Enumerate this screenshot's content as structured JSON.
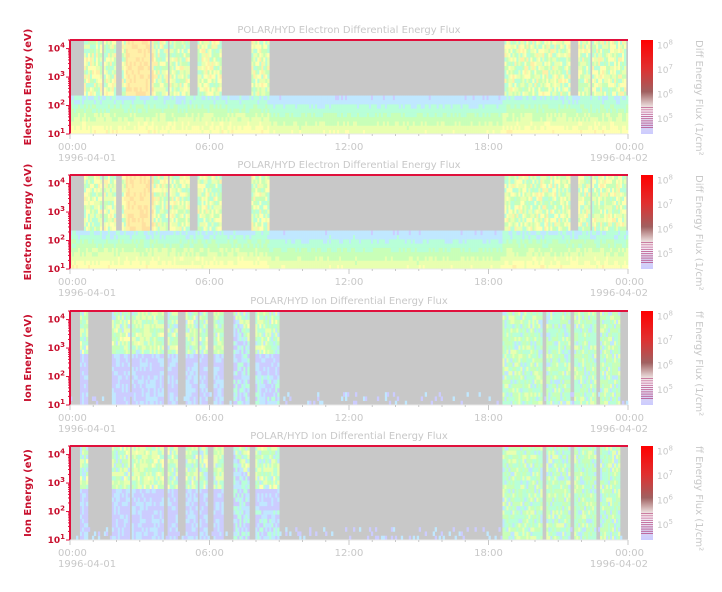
{
  "chart_data": [
    {
      "type": "heatmap",
      "title": "POLAR/HYD  Electron Differential Energy Flux",
      "ylabel": "Electron Energy (eV)",
      "yscale": "log",
      "ylim": [
        10,
        20000
      ],
      "yticks": [
        {
          "base": "10",
          "exp": "1",
          "v": 10
        },
        {
          "base": "10",
          "exp": "2",
          "v": 100
        },
        {
          "base": "10",
          "exp": "3",
          "v": 1000
        },
        {
          "base": "10",
          "exp": "4",
          "v": 10000
        }
      ],
      "xticks": [
        "00:00",
        "06:00",
        "12:00",
        "18:00",
        "00:00"
      ],
      "xlim_hours": [
        0,
        24
      ],
      "start_date": "1996-04-01",
      "end_date": "1996-04-02",
      "colorbar": {
        "label": "Diff Energy Flux (1/cm²",
        "scale": "log",
        "ticks": [
          {
            "base": "10",
            "exp": "5",
            "v": 5
          },
          {
            "base": "10",
            "exp": "6",
            "v": 6
          },
          {
            "base": "10",
            "exp": "7",
            "v": 7
          },
          {
            "base": "10",
            "exp": "8",
            "v": 8
          }
        ]
      },
      "species": "electron",
      "variant": 0
    },
    {
      "type": "heatmap",
      "title": "POLAR/HYD  Electron Differential Energy Flux",
      "ylabel": "Electron Energy (eV)",
      "yscale": "log",
      "ylim": [
        10,
        20000
      ],
      "yticks": [
        {
          "base": "10",
          "exp": "1",
          "v": 10
        },
        {
          "base": "10",
          "exp": "2",
          "v": 100
        },
        {
          "base": "10",
          "exp": "3",
          "v": 1000
        },
        {
          "base": "10",
          "exp": "4",
          "v": 10000
        }
      ],
      "xticks": [
        "00:00",
        "06:00",
        "12:00",
        "18:00",
        "00:00"
      ],
      "xlim_hours": [
        0,
        24
      ],
      "start_date": "1996-04-01",
      "end_date": "1996-04-02",
      "colorbar": {
        "label": "Diff Energy Flux (1/cm²",
        "scale": "log",
        "ticks": [
          {
            "base": "10",
            "exp": "5",
            "v": 5
          },
          {
            "base": "10",
            "exp": "6",
            "v": 6
          },
          {
            "base": "10",
            "exp": "7",
            "v": 7
          },
          {
            "base": "10",
            "exp": "8",
            "v": 8
          }
        ]
      },
      "species": "electron",
      "variant": 1
    },
    {
      "type": "heatmap",
      "title": "POLAR/HYD  Ion Differential Energy Flux",
      "ylabel": "Ion Energy (eV)",
      "yscale": "log",
      "ylim": [
        10,
        20000
      ],
      "yticks": [
        {
          "base": "10",
          "exp": "1",
          "v": 10
        },
        {
          "base": "10",
          "exp": "2",
          "v": 100
        },
        {
          "base": "10",
          "exp": "3",
          "v": 1000
        },
        {
          "base": "10",
          "exp": "4",
          "v": 10000
        }
      ],
      "xticks": [
        "00:00",
        "06:00",
        "12:00",
        "18:00",
        "00:00"
      ],
      "xlim_hours": [
        0,
        24
      ],
      "start_date": "1996-04-01",
      "end_date": "1996-04-02",
      "colorbar": {
        "label": "ff Energy Flux (1/cm²",
        "scale": "log",
        "ticks": [
          {
            "base": "10",
            "exp": "5",
            "v": 5
          },
          {
            "base": "10",
            "exp": "6",
            "v": 6
          },
          {
            "base": "10",
            "exp": "7",
            "v": 7
          },
          {
            "base": "10",
            "exp": "8",
            "v": 8
          }
        ]
      },
      "species": "ion",
      "variant": 0
    },
    {
      "type": "heatmap",
      "title": "POLAR/HYD  Ion Differential Energy Flux",
      "ylabel": "Ion Energy (eV)",
      "yscale": "log",
      "ylim": [
        10,
        20000
      ],
      "yticks": [
        {
          "base": "10",
          "exp": "1",
          "v": 10
        },
        {
          "base": "10",
          "exp": "2",
          "v": 100
        },
        {
          "base": "10",
          "exp": "3",
          "v": 1000
        },
        {
          "base": "10",
          "exp": "4",
          "v": 10000
        }
      ],
      "xticks": [
        "00:00",
        "06:00",
        "12:00",
        "18:00",
        "00:00"
      ],
      "xlim_hours": [
        0,
        24
      ],
      "start_date": "1996-04-01",
      "end_date": "1996-04-02",
      "colorbar": {
        "label": "ff Energy Flux (1/cm²",
        "scale": "log",
        "ticks": [
          {
            "base": "10",
            "exp": "5",
            "v": 5
          },
          {
            "base": "10",
            "exp": "6",
            "v": 6
          },
          {
            "base": "10",
            "exp": "7",
            "v": 7
          },
          {
            "base": "10",
            "exp": "8",
            "v": 8
          }
        ]
      },
      "species": "ion",
      "variant": 1
    }
  ],
  "colors": {
    "frame": "#e0103c",
    "fill_gap": "#c8c8c8",
    "text_muted": "#c8c8c8",
    "axis_label": "#c8102e"
  }
}
